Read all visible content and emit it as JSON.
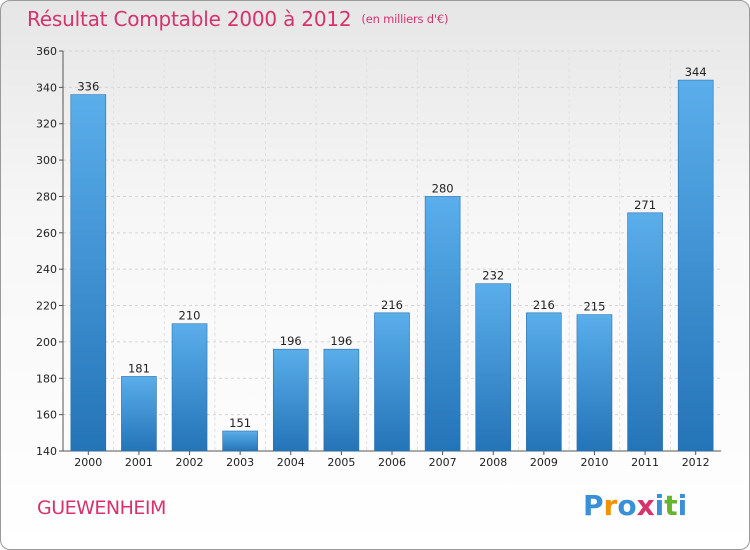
{
  "header": {
    "title": "Résultat Comptable 2000 à 2012",
    "subtitle": "(en milliers d'€)"
  },
  "footer": {
    "town": "GUEWENHEIM",
    "logo": "Proxiti",
    "logo_letters": [
      "P",
      "r",
      "o",
      "x",
      "i",
      "t",
      "i"
    ],
    "logo_colors": [
      "#3a8fd6",
      "#f39200",
      "#3a8fd6",
      "#d6336c",
      "#3a8fd6",
      "#66b32e",
      "#3a8fd6"
    ]
  },
  "chart_data": {
    "type": "bar",
    "title": "Résultat Comptable 2000 à 2012",
    "subtitle": "(en milliers d'€)",
    "categories": [
      "2000",
      "2001",
      "2002",
      "2003",
      "2004",
      "2005",
      "2006",
      "2007",
      "2008",
      "2009",
      "2010",
      "2011",
      "2012"
    ],
    "values": [
      336,
      181,
      210,
      151,
      196,
      196,
      216,
      280,
      232,
      216,
      215,
      271,
      344
    ],
    "ylim": [
      140,
      360
    ],
    "yticks": [
      140,
      160,
      180,
      200,
      220,
      240,
      260,
      280,
      300,
      320,
      340,
      360
    ],
    "grid": true,
    "bar_color": "#4a9fe0",
    "bar_color_dark": "#2a78c0",
    "xlabel": "",
    "ylabel": ""
  }
}
